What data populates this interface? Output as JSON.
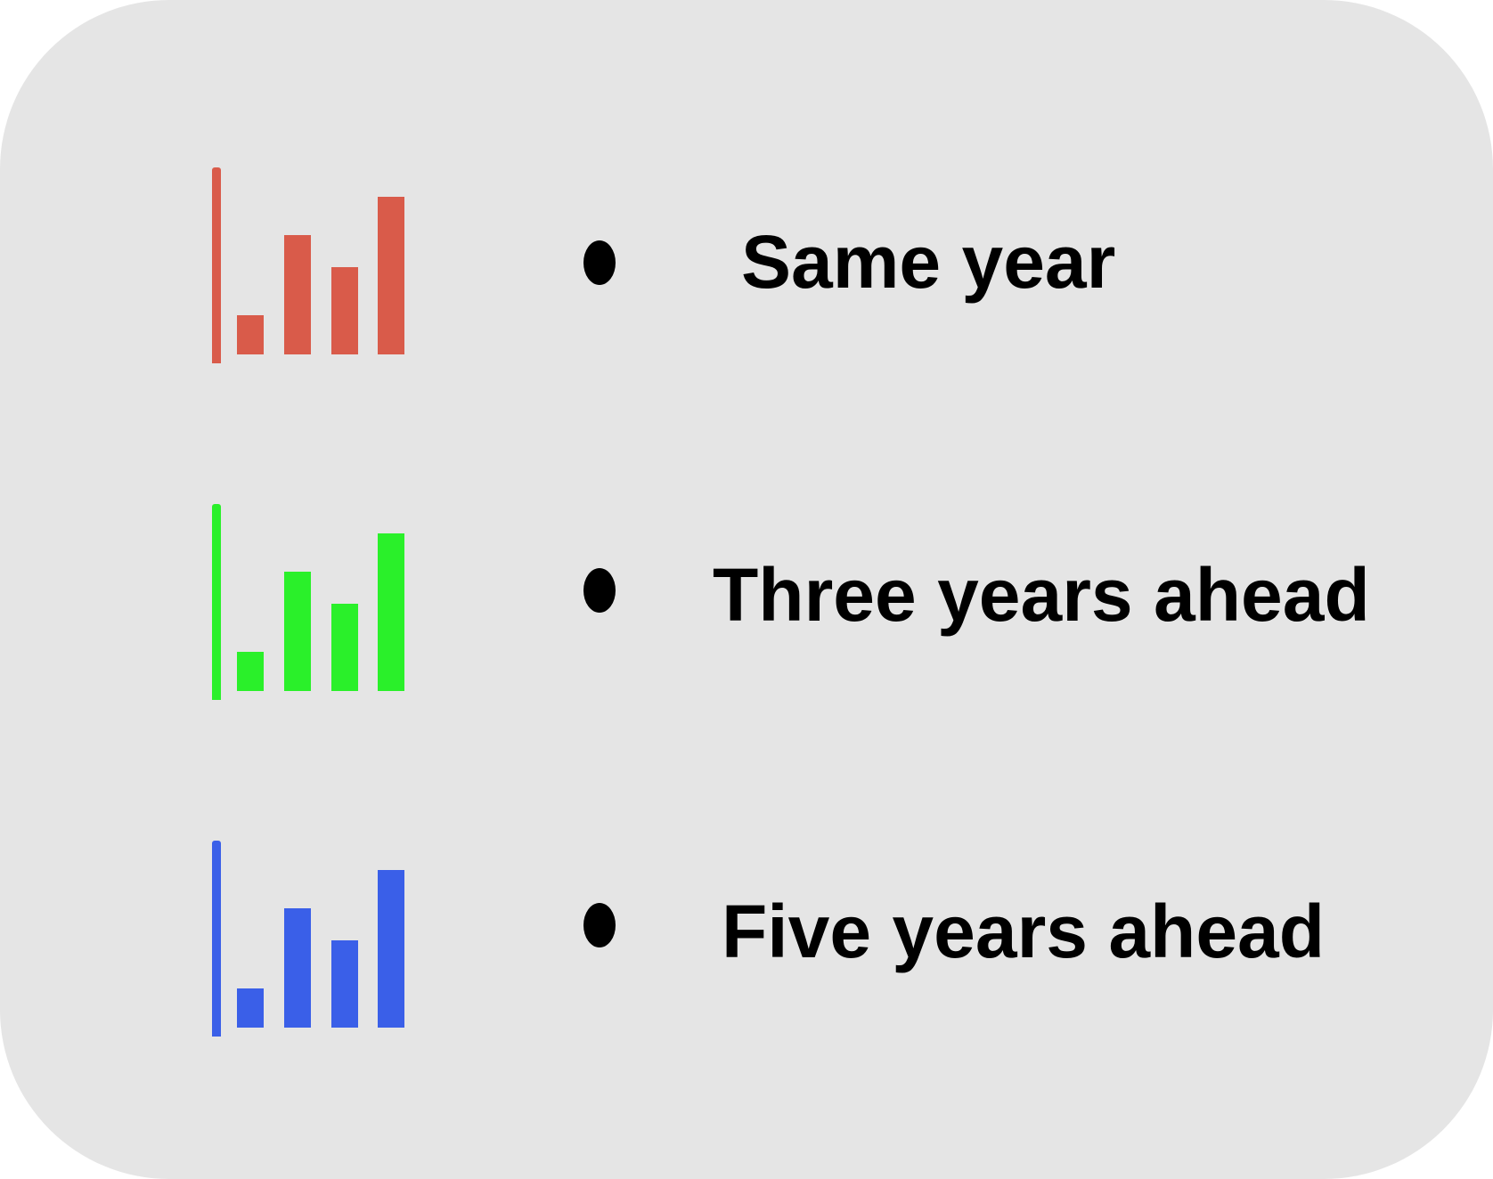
{
  "legend": {
    "items": [
      {
        "label": "Same year",
        "color": "#d95b4a",
        "icon": "bar-chart-icon"
      },
      {
        "label": "Three years ahead",
        "color": "#2af02a",
        "icon": "bar-chart-icon"
      },
      {
        "label": "Five years ahead",
        "color": "#3a5fe8",
        "icon": "bar-chart-icon"
      }
    ]
  }
}
